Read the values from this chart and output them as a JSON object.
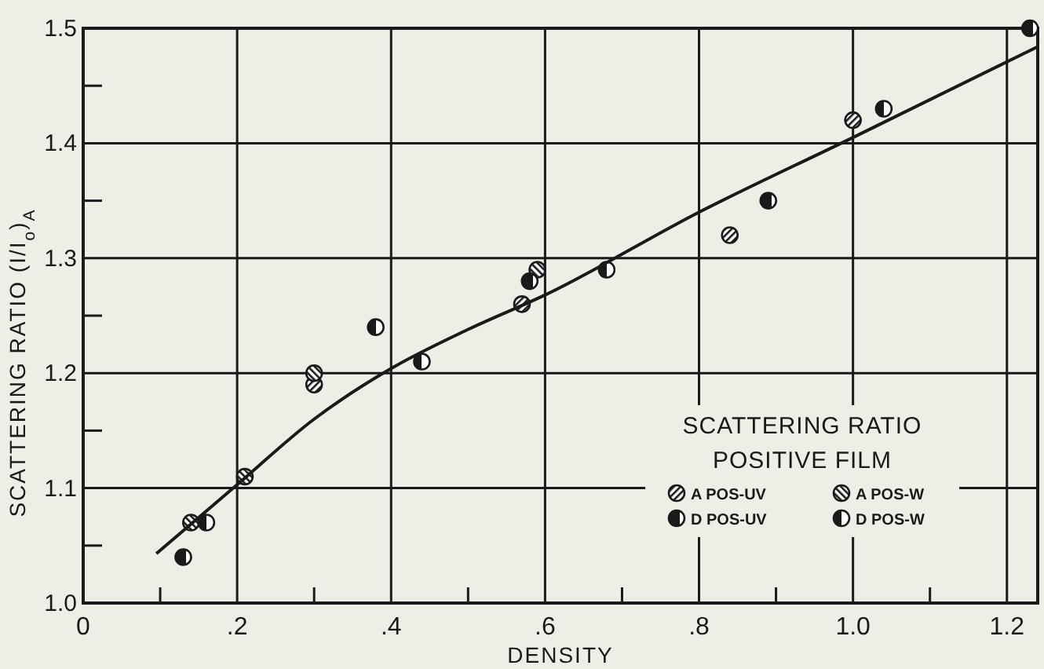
{
  "chart_data": {
    "type": "scatter",
    "xlabel": "DENSITY",
    "ylabel": "SCATTERING RATIO (I/I$_{o}$)$_{A}$",
    "legend_title": "SCATTERING RATIO\nPOSITIVE FILM",
    "legend": "bottom right",
    "grid": true,
    "marker": "circle",
    "xlim": [
      0,
      1.24
    ],
    "ylim": [
      1,
      1.5
    ],
    "xticks": [
      0,
      {
        "value": 0.1,
        "label": null
      },
      {
        "value": 0.2,
        "label": ".2"
      },
      {
        "value": 0.3,
        "label": null
      },
      {
        "value": 0.4,
        "label": ".4"
      },
      {
        "value": 0.5,
        "label": null
      },
      {
        "value": 0.6,
        "label": ".6"
      },
      {
        "value": 0.7,
        "label": null
      },
      {
        "value": 0.8,
        "label": ".8"
      },
      {
        "value": 0.9,
        "label": null
      },
      {
        "value": 1,
        "label": "1.0"
      },
      {
        "value": 1.1,
        "label": null
      },
      {
        "value": 1.2,
        "label": "1.2"
      }
    ],
    "yticks": [
      {
        "value": 1,
        "label": "1.0"
      },
      {
        "value": 1.05,
        "label": null
      },
      {
        "value": 1.1,
        "label": "1.1"
      },
      {
        "value": 1.15,
        "label": null
      },
      {
        "value": 1.2,
        "label": "1.2"
      },
      {
        "value": 1.25,
        "label": null
      },
      {
        "value": 1.3,
        "label": "1.3"
      },
      {
        "value": 1.35,
        "label": null
      },
      {
        "value": 1.4,
        "label": "1.4"
      },
      {
        "value": 1.45,
        "label": null
      },
      {
        "value": 1.5,
        "label": "1.5"
      }
    ],
    "series": [
      {
        "name": "A POS-UV",
        "color": "#1a1a1a",
        "x": [
          0.3,
          0.57,
          0.84,
          1.0
        ],
        "values": [
          1.19,
          1.26,
          1.32,
          1.42
        ]
      },
      {
        "name": "A POS-W",
        "color": "#1a1a1a",
        "x": [
          0.14,
          0.21,
          0.3,
          0.59
        ],
        "values": [
          1.07,
          1.11,
          1.2,
          1.29
        ]
      },
      {
        "name": "D POS-UV",
        "color": "#1a1a1a",
        "x": [
          0.13,
          0.58,
          0.89,
          1.23
        ],
        "values": [
          1.04,
          1.28,
          1.35,
          1.5
        ]
      },
      {
        "name": "D POS-W",
        "color": "#1a1a1a",
        "x": [
          0.16,
          0.38,
          0.44,
          0.68,
          1.04
        ],
        "values": [
          1.07,
          1.24,
          1.21,
          1.29,
          1.43
        ]
      },
      {
        "type": "line",
        "marker": "none",
        "color": "#1a1a1a",
        "x": [
          0.095,
          0.2,
          0.3,
          0.4,
          0.5,
          0.6,
          0.8,
          1.0,
          1.24
        ],
        "values": [
          1.043,
          1.103,
          1.16,
          1.204,
          1.238,
          1.268,
          1.34,
          1.405,
          1.484
        ]
      }
    ]
  }
}
